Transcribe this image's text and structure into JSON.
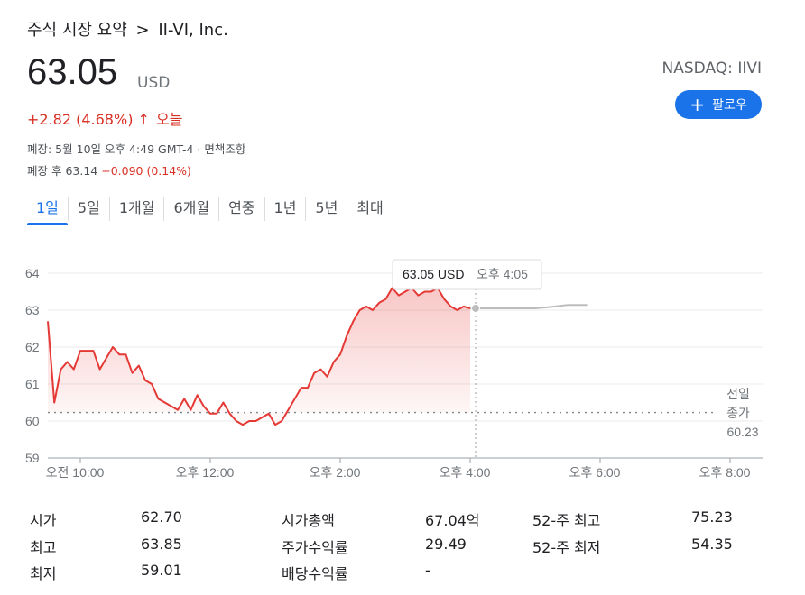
{
  "breadcrumb": {
    "section": "주식 시장 요약",
    "separator": ">",
    "company": "II-VI, Inc."
  },
  "quote": {
    "price": "63.05",
    "currency": "USD",
    "change": "+2.82 (4.68%)",
    "change_arrow": "↑",
    "change_period": "오늘",
    "exchange": "NASDAQ: IIVI",
    "close_info": "폐장: 5월 10일 오후 4:49 GMT-4 · 면책조항",
    "after_hours_label": "폐장 후 63.14",
    "after_hours_change": "+0.090 (0.14%)"
  },
  "follow_button": {
    "label": "팔로우",
    "icon": "plus-icon"
  },
  "tabs": [
    {
      "label": "1일",
      "active": true
    },
    {
      "label": "5일",
      "active": false
    },
    {
      "label": "1개월",
      "active": false
    },
    {
      "label": "6개월",
      "active": false
    },
    {
      "label": "연중",
      "active": false
    },
    {
      "label": "1년",
      "active": false
    },
    {
      "label": "5년",
      "active": false
    },
    {
      "label": "최대",
      "active": false
    }
  ],
  "colors": {
    "line": "#e53935",
    "accent": "#1a73e8",
    "down_red": "#d93025",
    "after_hours_line": "#bdbdbd"
  },
  "chart_data": {
    "type": "line",
    "ylim": [
      59,
      64
    ],
    "yticks": [
      64,
      63,
      62,
      61,
      60,
      59
    ],
    "xticks": [
      "오전 10:00",
      "오후 12:00",
      "오후 2:00",
      "오후 4:00",
      "오후 6:00",
      "오후 8:00"
    ],
    "xtick_hours": [
      10,
      12,
      14,
      16,
      18,
      20
    ],
    "xlim_hours": [
      9.5,
      20.5
    ],
    "grid": true,
    "tooltip": {
      "price": "63.05 USD",
      "time": "오후 4:05"
    },
    "prev_close": {
      "label_line1": "전일",
      "label_line2": "종가",
      "value": 60.23
    },
    "series": [
      {
        "x": [
          9.5,
          9.6,
          9.7,
          9.8,
          9.9,
          10.0,
          10.1,
          10.2,
          10.3,
          10.4,
          10.5,
          10.6,
          10.7,
          10.8,
          10.9,
          11.0,
          11.1,
          11.2,
          11.3,
          11.4,
          11.5,
          11.6,
          11.7,
          11.8,
          11.9,
          12.0,
          12.1,
          12.2,
          12.3,
          12.4,
          12.5,
          12.6,
          12.7,
          12.8,
          12.9,
          13.0,
          13.1,
          13.2,
          13.3,
          13.4,
          13.5,
          13.6,
          13.7,
          13.8,
          13.9,
          14.0,
          14.1,
          14.2,
          14.3,
          14.4,
          14.5,
          14.6,
          14.7,
          14.8,
          14.9,
          15.0,
          15.1,
          15.2,
          15.3,
          15.4,
          15.5,
          15.6,
          15.7,
          15.8,
          15.9,
          16.0
        ],
        "y": [
          62.7,
          60.5,
          61.4,
          61.6,
          61.4,
          61.9,
          61.9,
          61.9,
          61.4,
          61.7,
          62.0,
          61.8,
          61.8,
          61.3,
          61.5,
          61.1,
          61.0,
          60.6,
          60.5,
          60.4,
          60.3,
          60.6,
          60.3,
          60.7,
          60.4,
          60.2,
          60.2,
          60.5,
          60.2,
          60.0,
          59.9,
          60.0,
          60.0,
          60.1,
          60.2,
          59.9,
          60.0,
          60.3,
          60.6,
          60.9,
          60.9,
          61.3,
          61.4,
          61.2,
          61.6,
          61.8,
          62.3,
          62.7,
          63.0,
          63.1,
          63.0,
          63.2,
          63.3,
          63.6,
          63.4,
          63.5,
          63.6,
          63.4,
          63.5,
          63.5,
          63.6,
          63.3,
          63.1,
          63.0,
          63.1,
          63.05
        ]
      },
      {
        "x": [
          16.0,
          16.5,
          16.8,
          17.0,
          17.2,
          17.5,
          17.8
        ],
        "y": [
          63.05,
          63.05,
          63.05,
          63.05,
          63.08,
          63.14,
          63.14
        ]
      }
    ]
  },
  "stats": [
    {
      "label": "시가",
      "value": "62.70"
    },
    {
      "label": "최고",
      "value": "63.85"
    },
    {
      "label": "최저",
      "value": "59.01"
    },
    {
      "label": "시가총액",
      "value": "67.04억"
    },
    {
      "label": "주가수익률",
      "value": "29.49"
    },
    {
      "label": "배당수익률",
      "value": "-"
    },
    {
      "label": "52-주 최고",
      "value": "75.23"
    },
    {
      "label": "52-주 최저",
      "value": "54.35"
    }
  ]
}
